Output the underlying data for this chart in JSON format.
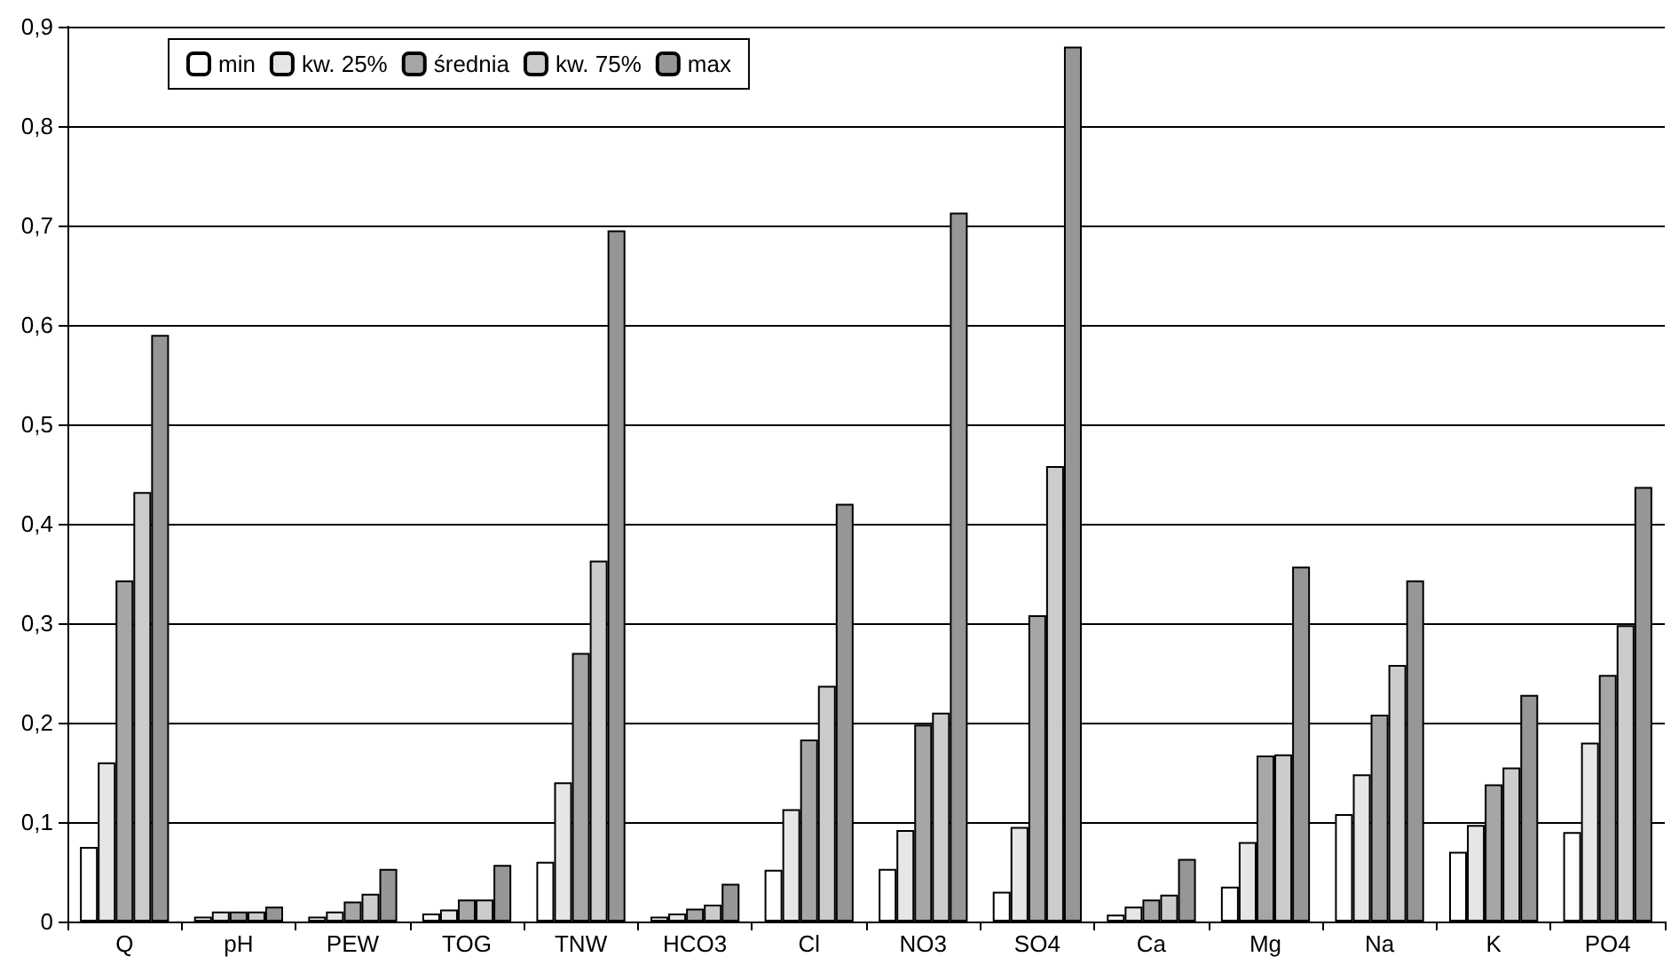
{
  "chart_data": {
    "type": "bar",
    "categories": [
      "Q",
      "pH",
      "PEW",
      "TOG",
      "TNW",
      "HCO3",
      "Cl",
      "NO3",
      "SO4",
      "Ca",
      "Mg",
      "Na",
      "K",
      "PO4"
    ],
    "series": [
      {
        "name": "min",
        "color": "#ffffff",
        "values": [
          0.075,
          0.005,
          0.005,
          0.008,
          0.06,
          0.005,
          0.052,
          0.053,
          0.03,
          0.007,
          0.035,
          0.108,
          0.07,
          0.09
        ]
      },
      {
        "name": "kw. 25%",
        "color": "#e6e6e6",
        "values": [
          0.16,
          0.01,
          0.01,
          0.012,
          0.14,
          0.008,
          0.113,
          0.092,
          0.095,
          0.015,
          0.08,
          0.148,
          0.097,
          0.18
        ]
      },
      {
        "name": "średnia",
        "color": "#a6a6a6",
        "values": [
          0.343,
          0.01,
          0.02,
          0.022,
          0.27,
          0.013,
          0.183,
          0.198,
          0.308,
          0.022,
          0.167,
          0.208,
          0.138,
          0.248
        ]
      },
      {
        "name": "kw. 75%",
        "color": "#cccccc",
        "values": [
          0.432,
          0.01,
          0.028,
          0.022,
          0.363,
          0.017,
          0.237,
          0.21,
          0.458,
          0.027,
          0.168,
          0.258,
          0.155,
          0.298
        ]
      },
      {
        "name": "max",
        "color": "#969696",
        "values": [
          0.59,
          0.015,
          0.053,
          0.057,
          0.695,
          0.038,
          0.42,
          0.713,
          0.88,
          0.063,
          0.357,
          0.343,
          0.228,
          0.437
        ]
      }
    ],
    "ylim": [
      0,
      0.9
    ],
    "yticks": [
      {
        "value": 0,
        "label": "0"
      },
      {
        "value": 0.1,
        "label": "0,1"
      },
      {
        "value": 0.2,
        "label": "0,2"
      },
      {
        "value": 0.3,
        "label": "0,3"
      },
      {
        "value": 0.4,
        "label": "0,4"
      },
      {
        "value": 0.5,
        "label": "0,5"
      },
      {
        "value": 0.6,
        "label": "0,6"
      },
      {
        "value": 0.7,
        "label": "0,7"
      },
      {
        "value": 0.8,
        "label": "0,8"
      },
      {
        "value": 0.9,
        "label": "0,9"
      }
    ],
    "grid": "y",
    "legend": "top left"
  }
}
